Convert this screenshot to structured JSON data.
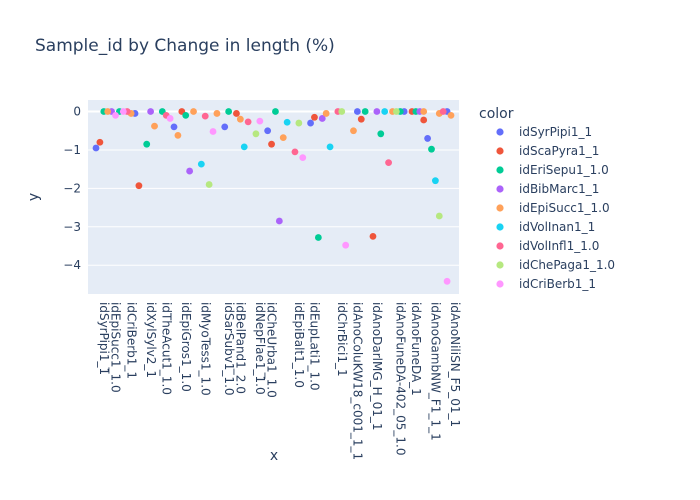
{
  "chart_data": {
    "type": "scatter",
    "title": "Sample_id by Change in length (%)",
    "xlabel": "x",
    "ylabel": "y",
    "ylim": [
      -4.75,
      0.3
    ],
    "yticks": [
      0,
      -1,
      -2,
      -3,
      -4
    ],
    "grid": true,
    "legend": {
      "title": "color",
      "placement": "right"
    },
    "categories": [
      "idSyrPipi1_1",
      "idScaPyra1_1",
      "idEriSepu1_1.0",
      "idEpiSucc1_1.0",
      "idBibMarc1_1",
      "idCriBerb1_1",
      "idEriSepu1_1.0",
      "idCriBerb1_1",
      "idVolInfl1_1.0",
      "idEpiSucc1_1.0",
      "idSyrPipi1_1",
      "idScaPyra1_1",
      "idXylSylv2_1",
      "idEriSepu1_1.0",
      "idBibMarc1_1",
      "idEpiSucc1_1.0",
      "idTheAcut1_1.0",
      "idEriSepu1_1.0",
      "idVolInfl1_1.0",
      "idCriBerb1_1",
      "idBibMarc1_1",
      "idEpiGros1_1.0",
      "idScaPyra1_1",
      "idEriSepu1_1.0",
      "idBibMarc1_1",
      "idEpiSucc1_1.0",
      "idMyoTess1_1.0",
      "idVolInan1_1",
      "idVolInfl1_1.0",
      "idChePaga1_1.0",
      "idCriBerb1_1",
      "idEpiSucc1_1.0",
      "idSarSubv1_1.0",
      "idSyrPipi1_1",
      "idEriSepu1_1.0",
      "idBelPand1_2.0",
      "idScaPyra1_1",
      "idEpiSucc1_1.0",
      "idVolInan1_1",
      "idVolInfl1_1.0",
      "idNepFlae1_1.0",
      "idChePaga1_1.0",
      "idCriBerb1_1",
      "idCheUrba1_1.0",
      "idSyrPipi1_1",
      "idScaPyra1_1",
      "idEriSepu1_1.0",
      "idBibMarc1_1",
      "idEpiSucc1_1.0",
      "idVolInan1_1",
      "idEpiBalt1_1.0",
      "idVolInfl1_1.0",
      "idChePaga1_1.0",
      "idCriBerb1_1",
      "idEupLati1_1.0",
      "idSyrPipi1_1",
      "idScaPyra1_1",
      "idEriSepu1_1.0",
      "idBibMarc1_1",
      "idEpiSucc1_1.0",
      "idVolInan1_1",
      "idChrBici1_1",
      "idVolInfl1_1.0",
      "idChePaga1_1.0",
      "idCriBerb1_1",
      "idAnoColuKW18_c001_1_1",
      "idEpiSucc1_1.0",
      "idSyrPipi1_1",
      "idScaPyra1_1",
      "idEriSepu1_1.0",
      "idAnoDarlMG_H_01_1",
      "idBibMarc1_1",
      "idEpiSucc1_1.0",
      "idVolInan1_1",
      "idVolInfl1_1.0",
      "idChePaga1_1.0",
      "idAnoFuneDA-402_05_1.0",
      "idEpiSucc1_1.0",
      "idEriSepu1_1.0",
      "idSyrPipi1_1",
      "idAnoFuneDA_1",
      "idScaPyra1_1",
      "idEriSepu1_1.0",
      "idBibMarc1_1",
      "idEpiSucc1_1.0",
      "idAnoGambNW_F1_1_1",
      "idVolInan1_1",
      "idVolInfl1_1.0",
      "idChePaga1_1.0",
      "idCriBerb1_1",
      "idAnoNiliSN_F5_01_1",
      "idEpiSucc1_1.0"
    ],
    "x_tick_labels": [
      "idSyrPipi1_1",
      "idEpiSucc1_1.0",
      "idCriBerb1_1",
      "idXylSylv2_1",
      "idTheAcut1_1.0",
      "idEpiGros1_1.0",
      "idMyoTess1_1.0",
      "idSarSubv1_1.0",
      "idBelPand1_2.0",
      "idNepFlae1_1.0",
      "idCheUrba1_1.0",
      "idEpiBalt1_1.0",
      "idEupLati1_1.0",
      "idChrBici1_1",
      "idAnoColuKW18_c001_1_1",
      "idAnoDarlMG_H_01_1",
      "idAnoFuneDA-402_05_1.0",
      "idAnoFuneDA_1",
      "idAnoGambNW_F1_1_1",
      "idAnoNiliSN_F5_01_1"
    ],
    "x_tick_index": [
      0,
      3,
      7,
      12,
      16,
      21,
      26,
      32,
      35,
      40,
      43,
      50,
      54,
      61,
      65,
      70,
      76,
      80,
      85,
      90
    ],
    "series": [
      {
        "name": "idSyrPipi1_1",
        "color": "#636efa",
        "points": [
          [
            0,
            -0.95
          ],
          [
            10,
            -0.05
          ],
          [
            20,
            -0.4
          ],
          [
            33,
            -0.4
          ],
          [
            44,
            -0.5
          ],
          [
            55,
            -0.3
          ],
          [
            67,
            0.0
          ],
          [
            79,
            0.0
          ],
          [
            85,
            -0.7
          ],
          [
            90,
            0.0
          ]
        ]
      },
      {
        "name": "idScaPyra1_1",
        "color": "#EF553B",
        "points": [
          [
            1,
            -0.8
          ],
          [
            11,
            -1.93
          ],
          [
            22,
            0.0
          ],
          [
            36,
            -0.05
          ],
          [
            45,
            -0.85
          ],
          [
            56,
            -0.15
          ],
          [
            68,
            -0.2
          ],
          [
            71,
            -3.25
          ],
          [
            81,
            0.0
          ],
          [
            84,
            -0.22
          ]
        ]
      },
      {
        "name": "idEriSepu1_1.0",
        "color": "#00cc96",
        "points": [
          [
            2,
            0.0
          ],
          [
            6,
            0.0
          ],
          [
            13,
            -0.85
          ],
          [
            17,
            0.0
          ],
          [
            23,
            -0.1
          ],
          [
            34,
            0.0
          ],
          [
            46,
            0.0
          ],
          [
            57,
            -3.28
          ],
          [
            69,
            0.0
          ],
          [
            73,
            -0.58
          ],
          [
            78,
            0.0
          ],
          [
            82,
            0.0
          ],
          [
            86,
            -0.98
          ]
        ]
      },
      {
        "name": "idBibMarc1_1",
        "color": "#ab63fa",
        "points": [
          [
            4,
            0.0
          ],
          [
            14,
            0.0
          ],
          [
            24,
            -1.55
          ],
          [
            47,
            -2.85
          ],
          [
            58,
            -0.18
          ],
          [
            72,
            0.0
          ],
          [
            83,
            0.0
          ]
        ]
      },
      {
        "name": "idEpiSucc1_1.0",
        "color": "#FFA15A",
        "points": [
          [
            3,
            0.0
          ],
          [
            9,
            -0.05
          ],
          [
            15,
            -0.38
          ],
          [
            21,
            -0.62
          ],
          [
            25,
            0.0
          ],
          [
            31,
            -0.05
          ],
          [
            37,
            -0.2
          ],
          [
            48,
            -0.68
          ],
          [
            59,
            -0.05
          ],
          [
            66,
            -0.5
          ],
          [
            76,
            0.0
          ],
          [
            84,
            0.0
          ],
          [
            88,
            -0.05
          ],
          [
            91,
            -0.1
          ]
        ]
      },
      {
        "name": "idVolInan1_1",
        "color": "#19d3f3",
        "points": [
          [
            27,
            -1.37
          ],
          [
            38,
            -0.92
          ],
          [
            49,
            -0.28
          ],
          [
            60,
            -0.92
          ],
          [
            74,
            0.0
          ],
          [
            87,
            -1.8
          ]
        ]
      },
      {
        "name": "idVolInfl1_1.0",
        "color": "#FF6692",
        "points": [
          [
            8,
            0.0
          ],
          [
            18,
            -0.1
          ],
          [
            28,
            -0.12
          ],
          [
            39,
            -0.27
          ],
          [
            51,
            -1.05
          ],
          [
            62,
            0.0
          ],
          [
            75,
            -1.33
          ],
          [
            89,
            0.0
          ]
        ]
      },
      {
        "name": "idChePaga1_1.0",
        "color": "#B6E880",
        "points": [
          [
            29,
            -1.9
          ],
          [
            41,
            -0.58
          ],
          [
            52,
            -0.3
          ],
          [
            63,
            0.0
          ],
          [
            77,
            0.0
          ],
          [
            88,
            -2.72
          ]
        ]
      },
      {
        "name": "idCriBerb1_1",
        "color": "#FF97FF",
        "points": [
          [
            5,
            -0.1
          ],
          [
            7,
            0.0
          ],
          [
            19,
            -0.18
          ],
          [
            30,
            -0.52
          ],
          [
            42,
            -0.25
          ],
          [
            53,
            -1.2
          ],
          [
            64,
            -3.48
          ],
          [
            90,
            -4.42
          ]
        ]
      }
    ]
  }
}
